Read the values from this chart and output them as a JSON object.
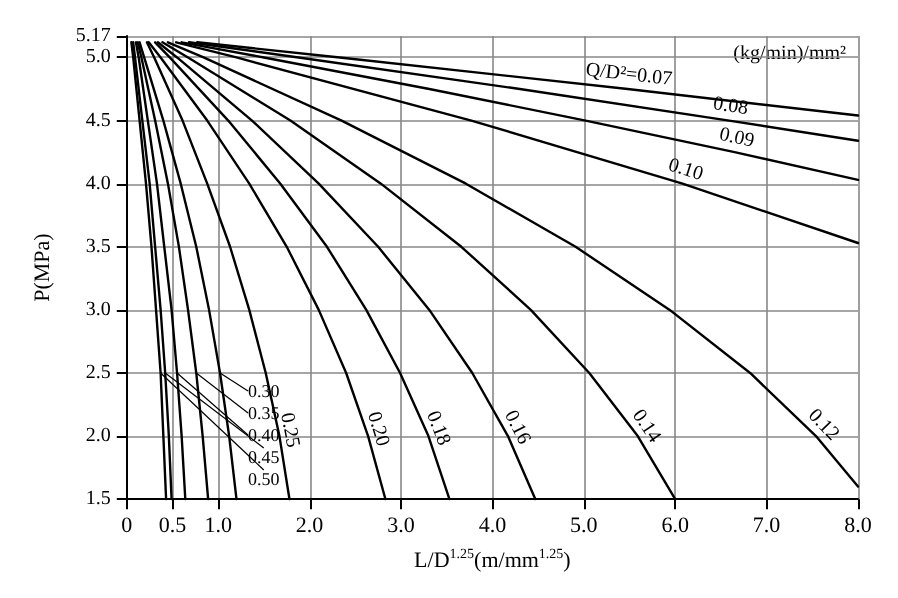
{
  "chart_data": {
    "type": "line",
    "xlabel": "L/D$^{1.25}$(m/mm$^{1.25}$)",
    "ylabel": "P(MPa)",
    "legend_title": "Q/D²=",
    "annotations": [
      "(kg/min)/mm²"
    ],
    "xlim": [
      0,
      8
    ],
    "xticks": [
      0,
      0.5,
      {
        "value": 1,
        "label": "1.0"
      },
      {
        "value": 2,
        "label": "2.0"
      },
      {
        "value": 3,
        "label": "3.0"
      },
      {
        "value": 4,
        "label": "4.0"
      },
      {
        "value": 5,
        "label": "5.0"
      },
      {
        "value": 6,
        "label": "6.0"
      },
      {
        "value": 7,
        "label": "7.0"
      },
      {
        "value": 8,
        "label": "8.0"
      }
    ],
    "ylim": [
      1.5,
      5.17
    ],
    "yticks": [
      1.5,
      {
        "value": 2,
        "label": "2.0"
      },
      2.5,
      {
        "value": 3,
        "label": "3.0"
      },
      3.5,
      {
        "value": 4,
        "label": "4.0"
      },
      4.5,
      {
        "value": 5,
        "label": "5.0"
      },
      5.17
    ],
    "grid": true,
    "marker": "none",
    "line_style": "solid",
    "series": [
      {
        "name": "0.07",
        "color": "#000000",
        "x": [
          0.77,
          2.33,
          5.48,
          8
        ],
        "values": [
          5.12,
          5.0,
          4.75,
          4.54
        ]
      },
      {
        "name": "0.08",
        "color": "#000000",
        "x": [
          0.68,
          1.88,
          4.3,
          6.59,
          8
        ],
        "values": [
          5.12,
          5.0,
          4.75,
          4.5,
          4.34
        ]
      },
      {
        "name": "0.09",
        "color": "#000000",
        "x": [
          0.6,
          1.5,
          3.31,
          5.02,
          6.65,
          8
        ],
        "values": [
          5.12,
          5.0,
          4.75,
          4.5,
          4.25,
          4.03
        ]
      },
      {
        "name": "0.10",
        "color": "#000000",
        "x": [
          0.54,
          1.2,
          3.77,
          6.08,
          8
        ],
        "values": [
          5.12,
          5.0,
          4.5,
          4.0,
          3.53
        ]
      },
      {
        "name": "0.12",
        "color": "#000000",
        "x": [
          0.45,
          0.84,
          2.35,
          3.71,
          4.91,
          5.94,
          6.82,
          7.54,
          8
        ],
        "values": [
          5.12,
          5.0,
          4.5,
          4.0,
          3.5,
          3.0,
          2.5,
          2.0,
          1.6
        ]
      },
      {
        "name": "0.14",
        "color": "#000000",
        "x": [
          0.39,
          0.67,
          1.79,
          2.78,
          3.66,
          4.42,
          5.06,
          5.59,
          6.0
        ],
        "values": [
          5.12,
          5.0,
          4.5,
          4.0,
          3.5,
          3.0,
          2.5,
          2.0,
          1.5
        ]
      },
      {
        "name": "0.16",
        "color": "#000000",
        "x": [
          0.34,
          0.55,
          1.37,
          2.1,
          2.75,
          3.31,
          3.78,
          4.17,
          4.47
        ],
        "values": [
          5.12,
          5.0,
          4.5,
          4.0,
          3.5,
          3.0,
          2.5,
          2.0,
          1.5
        ]
      },
      {
        "name": "0.18",
        "color": "#000000",
        "x": [
          0.31,
          0.47,
          1.11,
          1.68,
          2.19,
          2.62,
          2.99,
          3.3,
          3.53
        ],
        "values": [
          5.12,
          5.0,
          4.5,
          4.0,
          3.5,
          3.0,
          2.5,
          2.0,
          1.5
        ]
      },
      {
        "name": "0.20",
        "color": "#000000",
        "x": [
          0.24,
          0.37,
          0.88,
          1.34,
          1.75,
          2.1,
          2.4,
          2.64,
          2.83
        ],
        "values": [
          5.12,
          5.0,
          4.5,
          4.0,
          3.5,
          3.0,
          2.5,
          2.0,
          1.5
        ]
      },
      {
        "name": "0.25",
        "color": "#000000",
        "x": [
          0.22,
          0.3,
          0.61,
          0.88,
          1.13,
          1.34,
          1.52,
          1.67,
          1.78
        ],
        "values": [
          5.12,
          5.0,
          4.5,
          4.0,
          3.5,
          3.0,
          2.5,
          2.0,
          1.5
        ]
      },
      {
        "name": "0.30",
        "color": "#000000",
        "x": [
          0.14,
          0.19,
          0.4,
          0.59,
          0.76,
          0.9,
          1.02,
          1.12,
          1.2
        ],
        "values": [
          5.12,
          5.0,
          4.5,
          4.0,
          3.5,
          3.0,
          2.5,
          2.0,
          1.5
        ]
      },
      {
        "name": "0.35",
        "color": "#000000",
        "x": [
          0.12,
          0.16,
          0.31,
          0.45,
          0.57,
          0.67,
          0.76,
          0.83,
          0.89
        ],
        "values": [
          5.12,
          5.0,
          4.5,
          4.0,
          3.5,
          3.0,
          2.5,
          2.0,
          1.5
        ]
      },
      {
        "name": "0.40",
        "color": "#000000",
        "x": [
          0.1,
          0.13,
          0.23,
          0.33,
          0.41,
          0.49,
          0.55,
          0.6,
          0.64
        ],
        "values": [
          5.12,
          5.0,
          4.5,
          4.0,
          3.5,
          3.0,
          2.5,
          2.0,
          1.5
        ]
      },
      {
        "name": "0.45",
        "color": "#000000",
        "x": [
          0.07,
          0.09,
          0.17,
          0.25,
          0.31,
          0.37,
          0.42,
          0.46,
          0.49
        ],
        "values": [
          5.12,
          5.0,
          4.5,
          4.0,
          3.5,
          3.0,
          2.5,
          2.0,
          1.5
        ]
      },
      {
        "name": "0.50",
        "color": "#000000",
        "x": [
          0.05,
          0.07,
          0.14,
          0.21,
          0.27,
          0.32,
          0.37,
          0.4,
          0.43
        ],
        "values": [
          5.12,
          5.0,
          4.5,
          4.0,
          3.5,
          3.0,
          2.5,
          2.0,
          1.5
        ]
      }
    ]
  }
}
